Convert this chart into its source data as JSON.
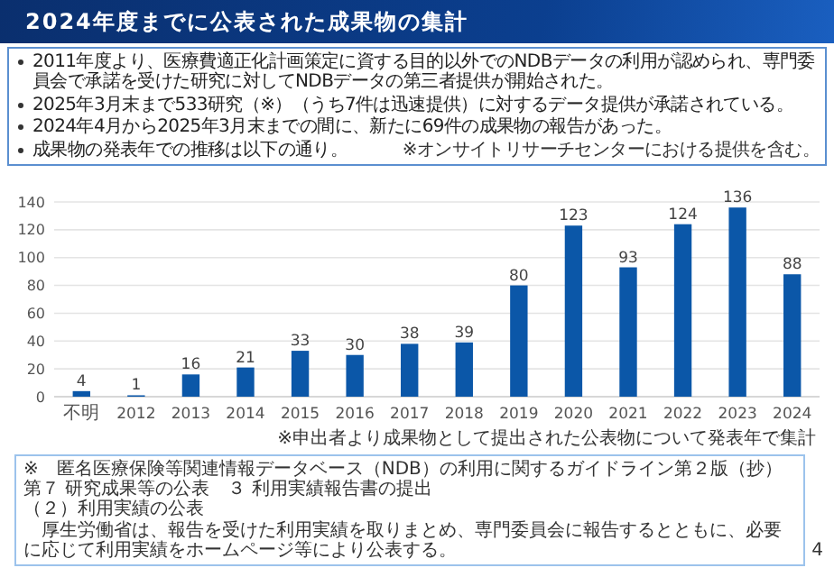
{
  "chart_data": {
    "type": "bar",
    "title": "2024年度までに公表された成果物の集計",
    "categories": [
      "不明",
      "2012",
      "2013",
      "2014",
      "2015",
      "2016",
      "2017",
      "2018",
      "2019",
      "2020",
      "2021",
      "2022",
      "2023",
      "2024"
    ],
    "values": [
      4,
      1,
      16,
      21,
      33,
      30,
      38,
      39,
      80,
      123,
      93,
      124,
      136,
      88
    ],
    "color": "#0b57a8",
    "ylim": [
      0,
      140
    ],
    "yticks": [
      0,
      20,
      40,
      60,
      80,
      100,
      120,
      140
    ],
    "grid": "y",
    "data_labels": true,
    "annotations": [
      "2011年度より、医療費適正化計画策定に資する目的以外でのNDBデータの利用が認められ、専門委員会で承諾を受けた研究に対してNDBデータの第三者提供が開始された。",
      "2025年3月末まで533研究（※）（うち7件は迅速提供）に対するデータ提供が承諾されている。",
      "2024年4月から2025年3月末までの間に、新たに69件の成果物の報告があった。",
      "成果物の発表年での推移は以下の通り。",
      "※オンサイトリサーチセンターにおける提供を含む。",
      "※申出者より成果物として提出された公表物について発表年で集計",
      "※　匿名医療保険等関連情報データベース（NDB）の利用に関するガイドライン第２版（抄）",
      "第７ 研究成果等の公表　３ 利用実績報告書の提出",
      "（２）利用実績の公表",
      "　厚生労働省は、報告を受けた利用実績を取りまとめ、専門委員会に報告するとともに、必要に応じて利用実績をホームページ等により公表する。",
      "4"
    ]
  }
}
